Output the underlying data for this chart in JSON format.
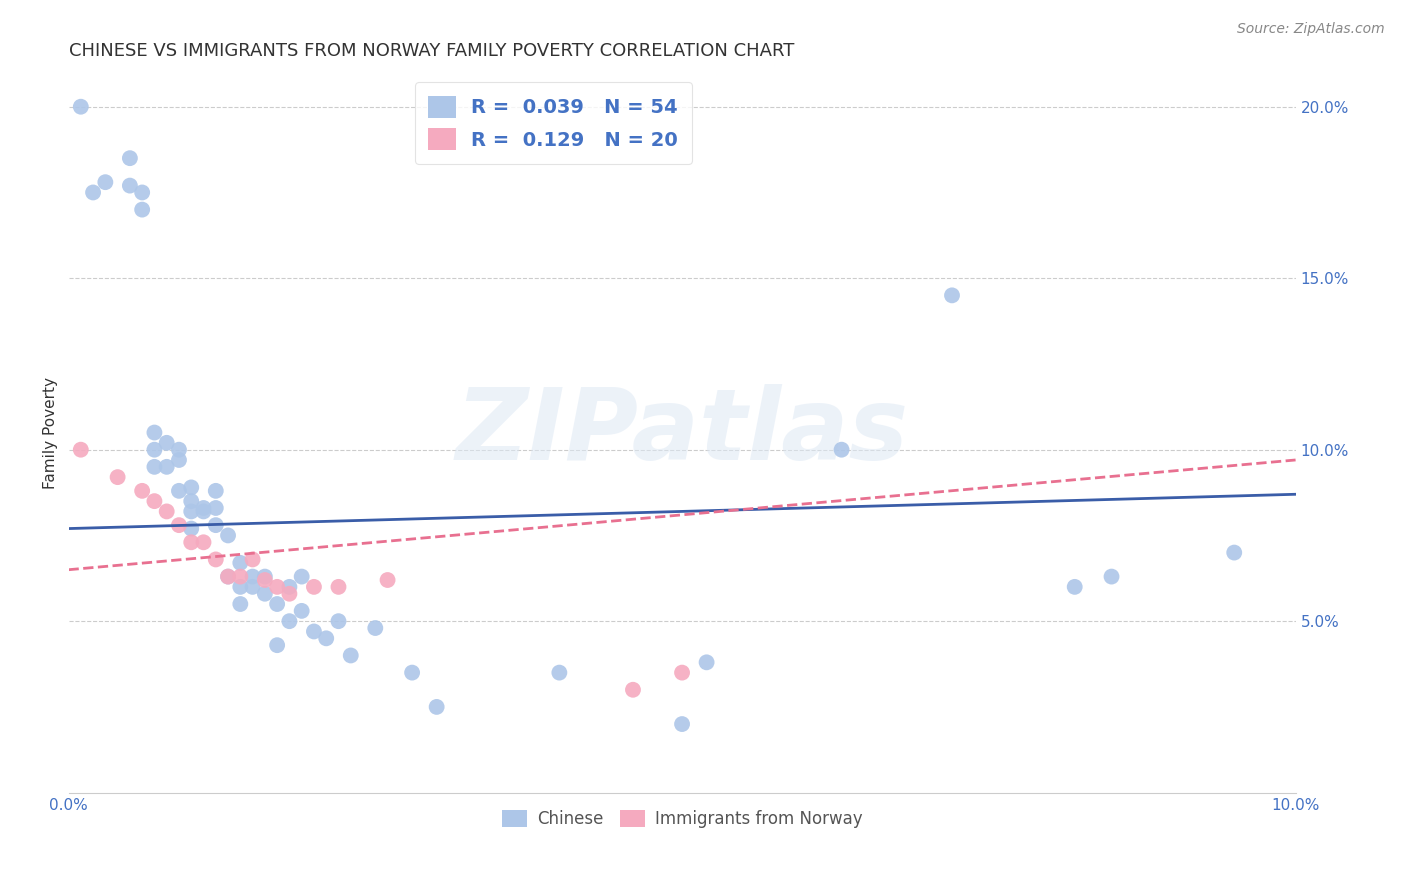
{
  "title": "CHINESE VS IMMIGRANTS FROM NORWAY FAMILY POVERTY CORRELATION CHART",
  "source_text": "Source: ZipAtlas.com",
  "ylabel": "Family Poverty",
  "xlim": [
    0.0,
    0.1
  ],
  "ylim": [
    0.0,
    0.21
  ],
  "watermark_text": "ZIPatlas",
  "legend_r1": "0.039",
  "legend_n1": "54",
  "legend_r2": "0.129",
  "legend_n2": "20",
  "legend_label1": "Chinese",
  "legend_label2": "Immigrants from Norway",
  "chinese_color": "#adc6e8",
  "norway_color": "#f5aabf",
  "chinese_line_color": "#3a5da8",
  "norway_line_color": "#e87090",
  "background_color": "#ffffff",
  "grid_color": "#cccccc",
  "title_fontsize": 13,
  "axis_label_fontsize": 11,
  "tick_fontsize": 11,
  "chinese_x": [
    0.001,
    0.002,
    0.003,
    0.005,
    0.005,
    0.006,
    0.006,
    0.007,
    0.007,
    0.007,
    0.008,
    0.008,
    0.009,
    0.009,
    0.009,
    0.01,
    0.01,
    0.01,
    0.01,
    0.011,
    0.011,
    0.012,
    0.012,
    0.012,
    0.013,
    0.013,
    0.014,
    0.014,
    0.014,
    0.015,
    0.015,
    0.016,
    0.016,
    0.017,
    0.017,
    0.018,
    0.018,
    0.019,
    0.019,
    0.02,
    0.021,
    0.022,
    0.023,
    0.025,
    0.028,
    0.03,
    0.04,
    0.05,
    0.052,
    0.063,
    0.072,
    0.082,
    0.085,
    0.095
  ],
  "chinese_y": [
    0.2,
    0.175,
    0.178,
    0.177,
    0.185,
    0.17,
    0.175,
    0.105,
    0.1,
    0.095,
    0.102,
    0.095,
    0.097,
    0.088,
    0.1,
    0.089,
    0.082,
    0.085,
    0.077,
    0.083,
    0.082,
    0.088,
    0.083,
    0.078,
    0.075,
    0.063,
    0.067,
    0.055,
    0.06,
    0.063,
    0.06,
    0.063,
    0.058,
    0.055,
    0.043,
    0.06,
    0.05,
    0.063,
    0.053,
    0.047,
    0.045,
    0.05,
    0.04,
    0.048,
    0.035,
    0.025,
    0.035,
    0.02,
    0.038,
    0.1,
    0.145,
    0.06,
    0.063,
    0.07
  ],
  "norway_x": [
    0.001,
    0.004,
    0.006,
    0.007,
    0.008,
    0.009,
    0.01,
    0.011,
    0.012,
    0.013,
    0.014,
    0.015,
    0.016,
    0.017,
    0.018,
    0.02,
    0.022,
    0.026,
    0.046,
    0.05
  ],
  "norway_y": [
    0.1,
    0.092,
    0.088,
    0.085,
    0.082,
    0.078,
    0.073,
    0.073,
    0.068,
    0.063,
    0.063,
    0.068,
    0.062,
    0.06,
    0.058,
    0.06,
    0.06,
    0.062,
    0.03,
    0.035
  ],
  "chinese_line_x0": 0.0,
  "chinese_line_y0": 0.077,
  "chinese_line_x1": 0.1,
  "chinese_line_y1": 0.087,
  "norway_line_x0": 0.0,
  "norway_line_y0": 0.065,
  "norway_line_x1": 0.1,
  "norway_line_y1": 0.097
}
